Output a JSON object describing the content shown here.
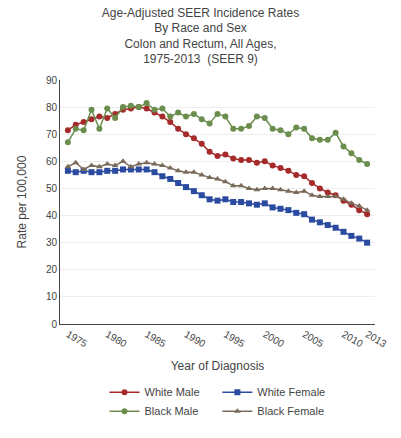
{
  "chart_data": {
    "type": "line",
    "title": "Age-Adjusted SEER Incidence Rates\nBy Race and Sex\nColon and Rectum, All Ages,\n1975-2013  (SEER 9)",
    "xlabel": "Year of Diagnosis",
    "ylabel": "Rate per 100,000",
    "x": [
      1975,
      1976,
      1977,
      1978,
      1979,
      1980,
      1981,
      1982,
      1983,
      1984,
      1985,
      1986,
      1987,
      1988,
      1989,
      1990,
      1991,
      1992,
      1993,
      1994,
      1995,
      1996,
      1997,
      1998,
      1999,
      2000,
      2001,
      2002,
      2003,
      2004,
      2005,
      2006,
      2007,
      2008,
      2009,
      2010,
      2011,
      2012,
      2013
    ],
    "xlim": [
      1974,
      2014
    ],
    "xticks": [
      1975,
      1980,
      1985,
      1990,
      1995,
      2000,
      2005,
      2010,
      2013
    ],
    "ylim": [
      0,
      90
    ],
    "yticks": [
      0,
      10,
      20,
      30,
      40,
      50,
      60,
      70,
      80,
      90
    ],
    "grid": "y",
    "legend": "bottom",
    "series": [
      {
        "name": "White Male",
        "color": "#a52a2a",
        "marker": "circle",
        "values": [
          71.5,
          73.5,
          74.5,
          75.5,
          76.5,
          76.0,
          77.5,
          79.0,
          79.5,
          80.0,
          79.5,
          78.0,
          76.5,
          74.5,
          72.0,
          70.0,
          68.5,
          66.5,
          63.5,
          62.0,
          62.5,
          61.0,
          60.5,
          60.5,
          59.5,
          60.0,
          58.5,
          57.5,
          56.5,
          55.0,
          54.5,
          52.0,
          50.0,
          48.5,
          47.5,
          45.5,
          44.0,
          42.0,
          40.5
        ]
      },
      {
        "name": "White Female",
        "color": "#2b4ba0",
        "marker": "square",
        "values": [
          56.5,
          56.0,
          56.5,
          56.0,
          56.0,
          56.5,
          56.5,
          57.0,
          57.0,
          57.0,
          57.0,
          56.0,
          54.5,
          53.5,
          52.0,
          50.5,
          49.0,
          47.5,
          46.0,
          45.5,
          46.0,
          45.0,
          45.0,
          44.5,
          44.0,
          44.5,
          43.0,
          42.5,
          42.0,
          41.0,
          40.5,
          38.5,
          37.5,
          36.5,
          35.5,
          34.0,
          32.5,
          31.5,
          30.0
        ]
      },
      {
        "name": "Black Male",
        "color": "#6b8e4e",
        "marker": "circle",
        "values": [
          67.0,
          72.0,
          71.5,
          79.0,
          72.0,
          79.5,
          76.0,
          80.0,
          80.5,
          80.0,
          81.5,
          79.0,
          79.5,
          76.5,
          78.0,
          76.5,
          77.5,
          75.5,
          74.0,
          77.5,
          76.5,
          72.0,
          72.0,
          73.0,
          76.5,
          76.0,
          72.0,
          71.5,
          70.0,
          72.5,
          72.0,
          68.5,
          68.0,
          68.0,
          70.5,
          65.5,
          63.0,
          60.5,
          59.0
        ]
      },
      {
        "name": "Black Female",
        "color": "#7a6a5a",
        "marker": "triangle-up",
        "values": [
          58.0,
          59.5,
          57.0,
          58.5,
          58.0,
          59.0,
          58.5,
          60.0,
          58.0,
          59.0,
          59.5,
          59.0,
          58.5,
          57.5,
          56.5,
          56.0,
          56.0,
          55.0,
          54.0,
          53.5,
          52.5,
          51.0,
          51.0,
          50.0,
          49.5,
          50.0,
          50.0,
          49.5,
          49.0,
          48.5,
          49.0,
          47.5,
          47.0,
          47.0,
          47.0,
          46.0,
          44.5,
          43.5,
          42.0
        ]
      }
    ]
  }
}
